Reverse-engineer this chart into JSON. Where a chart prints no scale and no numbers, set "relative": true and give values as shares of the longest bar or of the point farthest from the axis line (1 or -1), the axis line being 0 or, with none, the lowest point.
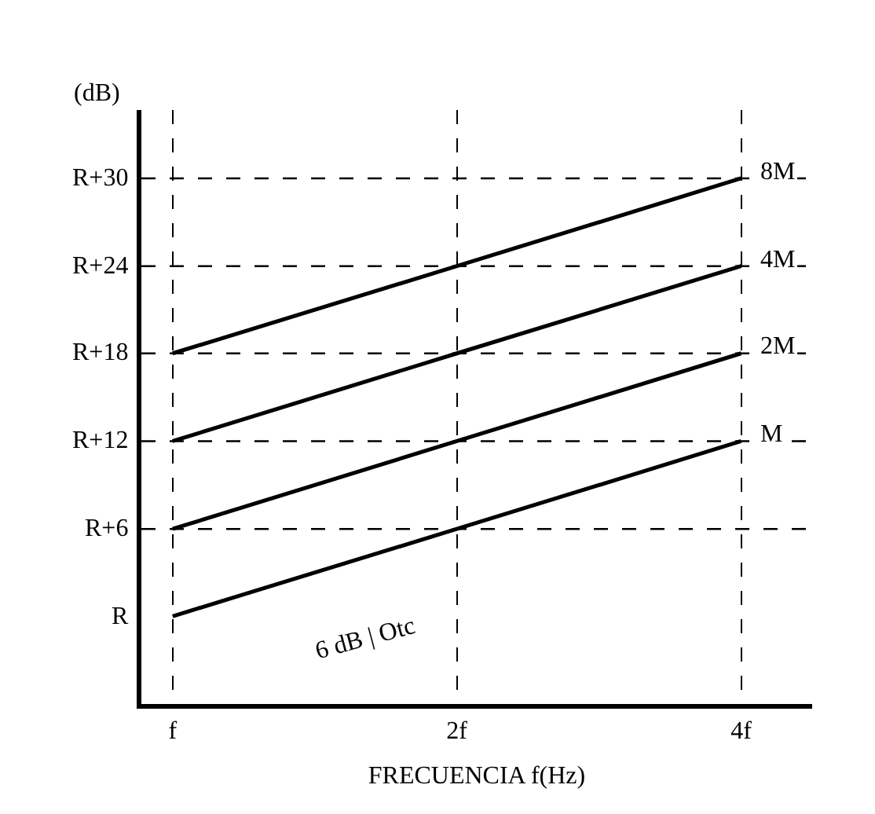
{
  "chart_data": {
    "type": "line",
    "xlabel": "FRECUENCIA f(Hz)",
    "ylabel": "(dB)",
    "categories": [
      "f",
      "2f",
      "4f"
    ],
    "relative": true,
    "series": [
      {
        "name": "M",
        "color": "#000000",
        "values": [
          0.167,
          0.333,
          0.5
        ]
      },
      {
        "name": "2M",
        "color": "#000000",
        "values": [
          0.333,
          0.5,
          0.667
        ]
      },
      {
        "name": "4M",
        "color": "#000000",
        "values": [
          0.5,
          0.667,
          0.833
        ]
      },
      {
        "name": "8M",
        "color": "#000000",
        "values": [
          0.667,
          0.833,
          1
        ]
      }
    ],
    "ref_lines": [
      {
        "axis": "y",
        "value": 0.333,
        "label": "R+6",
        "line_style": "dashed",
        "color": "#000000"
      },
      {
        "axis": "y",
        "value": 0.5,
        "label": "R+12",
        "line_style": "dashed",
        "color": "#000000"
      },
      {
        "axis": "y",
        "value": 0.667,
        "label": "R+18",
        "line_style": "dashed",
        "color": "#000000"
      },
      {
        "axis": "y",
        "value": 0.833,
        "label": "R+24",
        "line_style": "dashed",
        "color": "#000000"
      },
      {
        "axis": "y",
        "value": 1,
        "label": "R+30",
        "line_style": "dashed",
        "color": "#000000"
      }
    ],
    "annotations": [
      "R",
      "6 dB | Otc"
    ],
    "marker": "none",
    "line_style": "solid",
    "grid": "x",
    "legend": false
  }
}
